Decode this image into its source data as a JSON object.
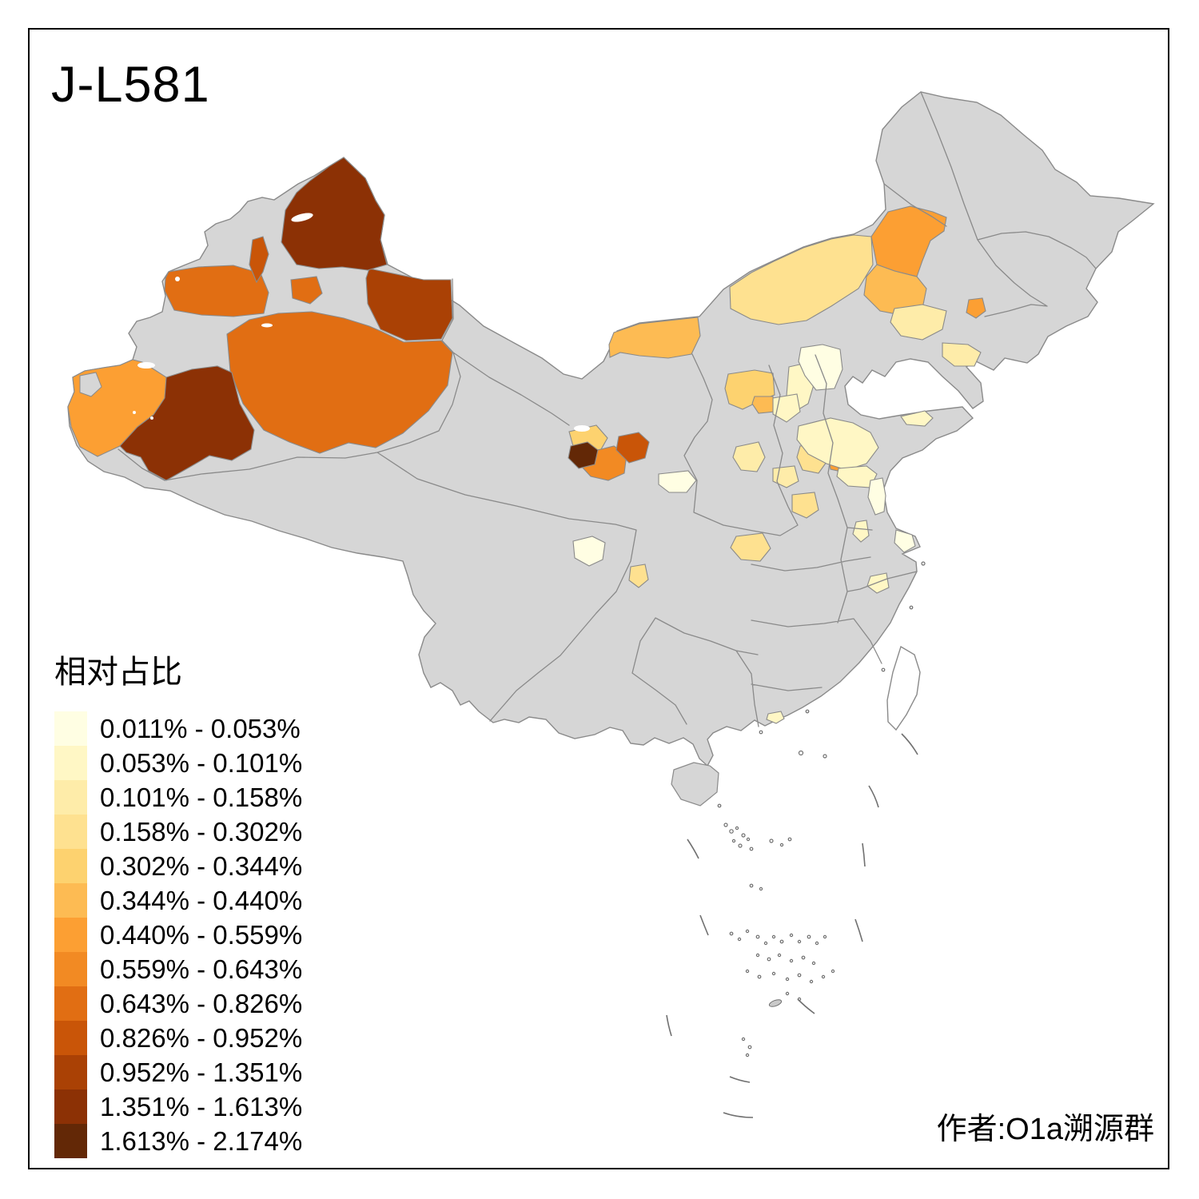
{
  "title": "J-L581",
  "attribution": "作者:O1a溯源群",
  "legend": {
    "title": "相对占比",
    "bins": [
      {
        "label": "0.011% - 0.053%",
        "color": "#FFFEE3"
      },
      {
        "label": "0.053% - 0.101%",
        "color": "#FFF7C5"
      },
      {
        "label": "0.101% - 0.158%",
        "color": "#FEECA9"
      },
      {
        "label": "0.158% - 0.302%",
        "color": "#FEE190"
      },
      {
        "label": "0.302% - 0.344%",
        "color": "#FDD26F"
      },
      {
        "label": "0.344% - 0.440%",
        "color": "#FDBB53"
      },
      {
        "label": "0.440% - 0.559%",
        "color": "#FC9F33"
      },
      {
        "label": "0.559% - 0.643%",
        "color": "#F28A23"
      },
      {
        "label": "0.643% - 0.826%",
        "color": "#E16E13"
      },
      {
        "label": "0.826% - 0.952%",
        "color": "#C95508"
      },
      {
        "label": "0.952% - 1.351%",
        "color": "#AA4105"
      },
      {
        "label": "1.351% - 1.613%",
        "color": "#8C3105"
      },
      {
        "label": "1.613% - 2.174%",
        "color": "#632806"
      }
    ]
  },
  "map": {
    "background_color": "#FFFFFF",
    "land_color": "#D6D6D6",
    "border_color": "#8A8A8A",
    "no_data_note": "grey prefectures have no value shown",
    "regions": [
      {
        "id": "altay",
        "bin": 12
      },
      {
        "id": "karamay",
        "bin": 10
      },
      {
        "id": "changji",
        "bin": 11
      },
      {
        "id": "shihezi",
        "bin": 9
      },
      {
        "id": "ili",
        "bin": 9
      },
      {
        "id": "bayingolin-aksu",
        "bin": 9
      },
      {
        "id": "kashgar-kizilsu",
        "bin": 7
      },
      {
        "id": "hotan",
        "bin": 12
      },
      {
        "id": "haibei",
        "bin": 5
      },
      {
        "id": "xining",
        "bin": 13
      },
      {
        "id": "hainanzhou",
        "bin": 8
      },
      {
        "id": "linxia",
        "bin": 10
      },
      {
        "id": "gannan",
        "bin": 1
      },
      {
        "id": "bayannur",
        "bin": 6
      },
      {
        "id": "xilingol",
        "bin": 4
      },
      {
        "id": "chifeng",
        "bin": 7
      },
      {
        "id": "tongliao",
        "bin": 6
      },
      {
        "id": "fuxin",
        "bin": 7
      },
      {
        "id": "hohhot",
        "bin": 5
      },
      {
        "id": "hohhot-south",
        "bin": 6
      },
      {
        "id": "shenyang",
        "bin": 3
      },
      {
        "id": "anshan",
        "bin": 3
      },
      {
        "id": "zhangjiakou",
        "bin": 2
      },
      {
        "id": "beijing",
        "bin": 1
      },
      {
        "id": "shijiazhuang",
        "bin": 7
      },
      {
        "id": "xinzhou",
        "bin": 2
      },
      {
        "id": "lvliang",
        "bin": 3
      },
      {
        "id": "taiyuan",
        "bin": 4
      },
      {
        "id": "zhengzhou",
        "bin": 4
      },
      {
        "id": "nanyang",
        "bin": 4
      },
      {
        "id": "kaifeng",
        "bin": 3
      },
      {
        "id": "jinan-area",
        "bin": 2
      },
      {
        "id": "linyi-area",
        "bin": 2
      },
      {
        "id": "yantai-tip",
        "bin": 2
      },
      {
        "id": "yancheng",
        "bin": 1
      },
      {
        "id": "nantong",
        "bin": 1
      },
      {
        "id": "bengbu",
        "bin": 2
      },
      {
        "id": "anhui-south",
        "bin": 2
      },
      {
        "id": "chengdu",
        "bin": 1
      },
      {
        "id": "suining",
        "bin": 4
      },
      {
        "id": "guangzhou",
        "bin": 2
      }
    ]
  }
}
